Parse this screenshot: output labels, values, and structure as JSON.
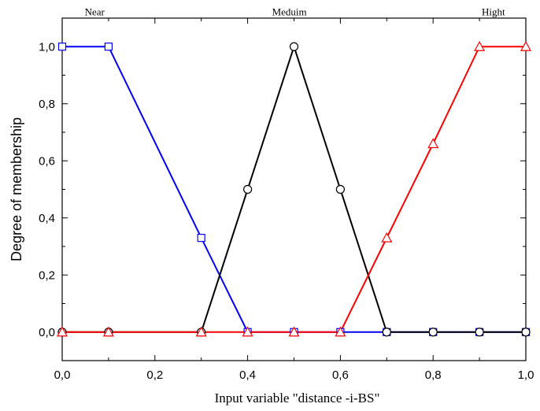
{
  "chart_data": {
    "type": "line",
    "title": "",
    "xlabel": "Input variable \"distance -i-BS\"",
    "ylabel": "Degree of membership",
    "xlim": [
      0,
      1
    ],
    "ylim": [
      -0.1,
      1.1
    ],
    "grid": false,
    "xticks": [
      0,
      0.2,
      0.4,
      0.6,
      0.8,
      1.0
    ],
    "xtick_labels": [
      "0,0",
      "0,2",
      "0,4",
      "0,6",
      "0,8",
      "1,0"
    ],
    "yticks": [
      0,
      0.2,
      0.4,
      0.6,
      0.8,
      1.0
    ],
    "ytick_labels": [
      "0,0",
      "0,2",
      "0,4",
      "0,6",
      "0,8",
      "1,0"
    ],
    "annotations": [
      {
        "text": "Near",
        "x": 0.07,
        "y": 1.11
      },
      {
        "text": "Meduim",
        "x": 0.49,
        "y": 1.11
      },
      {
        "text": "Hight",
        "x": 0.93,
        "y": 1.11
      }
    ],
    "x": [
      0,
      0.1,
      0.3,
      0.4,
      0.5,
      0.6,
      0.7,
      0.8,
      0.9,
      1.0
    ],
    "series": [
      {
        "color": "#0000ff",
        "marker": "square",
        "values": [
          1,
          1,
          0.33,
          0,
          0,
          0,
          0,
          0,
          0,
          0
        ]
      },
      {
        "color": "#000000",
        "marker": "circle",
        "values": [
          0,
          0,
          0,
          0.5,
          1,
          0.5,
          0,
          0,
          0,
          0
        ]
      },
      {
        "color": "#ff0000",
        "marker": "triangle",
        "values": [
          0,
          0,
          0,
          0,
          0,
          0,
          0.33,
          0.66,
          1,
          1
        ]
      }
    ]
  }
}
